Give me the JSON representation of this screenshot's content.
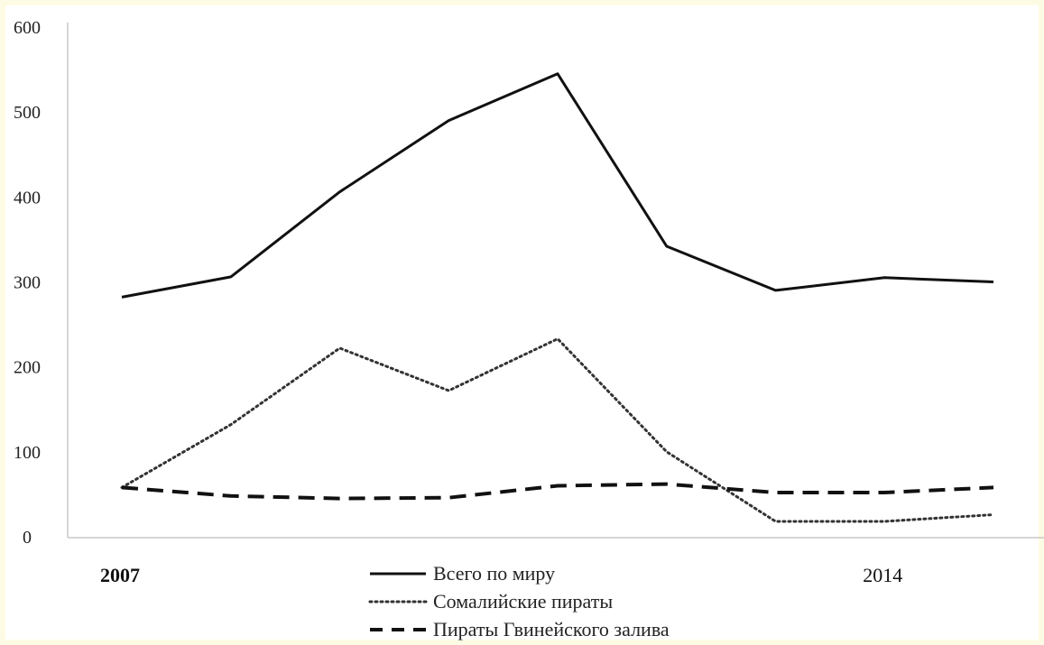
{
  "chart_data": {
    "type": "line",
    "x": [
      2007,
      2008,
      2009,
      2010,
      2011,
      2012,
      2013,
      2014,
      2015
    ],
    "series": [
      {
        "name": "Всего по миру",
        "values": [
          282,
          306,
          406,
          490,
          545,
          342,
          290,
          305,
          300
        ],
        "style": "solid",
        "color": "#111111"
      },
      {
        "name": "Сомалийские пираты",
        "values": [
          58,
          132,
          222,
          172,
          233,
          100,
          18,
          18,
          26
        ],
        "style": "dotted",
        "color": "#333333"
      },
      {
        "name": "Пираты Гвинейского залива",
        "values": [
          58,
          48,
          45,
          46,
          60,
          62,
          52,
          52,
          58
        ],
        "style": "dashed",
        "color": "#111111"
      }
    ],
    "y_ticks": [
      "0",
      "100",
      "200",
      "300",
      "400",
      "500",
      "600"
    ],
    "ylim": [
      0,
      600
    ],
    "x_tick_labels": [
      {
        "x": 2007,
        "label": "2007"
      },
      {
        "x": 2014,
        "label": "2014"
      }
    ],
    "legend_position": "bottom-center",
    "grid": false
  }
}
